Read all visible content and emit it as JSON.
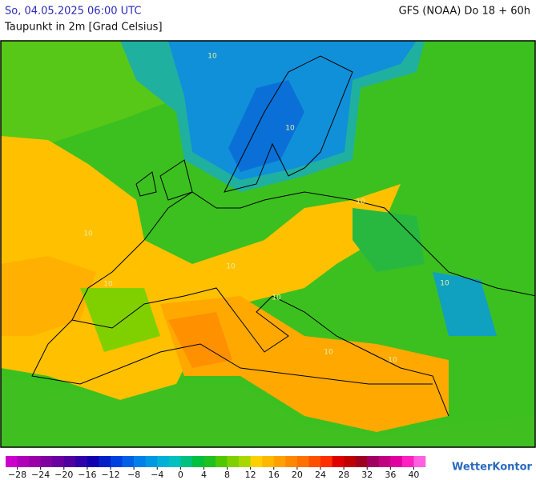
{
  "header": {
    "date": "So, 04.05.2025 06:00 UTC",
    "model": "GFS (NOAA) Do 18 + 60h",
    "subtitle": "Taupunkt in 2m [Grad Celsius]"
  },
  "map": {
    "contour_labels": [
      "10",
      "10",
      "10",
      "10",
      "10",
      "10",
      "10",
      "10",
      "10",
      "10"
    ]
  },
  "colorbar": {
    "range": [
      -30,
      42
    ],
    "colors": [
      "#cc00cc",
      "#b000b8",
      "#9a00a8",
      "#8000a0",
      "#6a00a0",
      "#5000a0",
      "#3000a8",
      "#1000b0",
      "#0020c8",
      "#0040e0",
      "#0060e8",
      "#0080e8",
      "#0098e0",
      "#00b0d8",
      "#00c0c0",
      "#00c080",
      "#00c040",
      "#20c020",
      "#50c800",
      "#80d000",
      "#a8d800",
      "#ffd000",
      "#ffb800",
      "#ffa000",
      "#ff8800",
      "#ff7000",
      "#ff5000",
      "#ff3000",
      "#e00000",
      "#c00000",
      "#a00020",
      "#a00060",
      "#c00080",
      "#e000a0",
      "#ff20c0",
      "#ff60e0"
    ],
    "ticks": [
      {
        "value": -28,
        "label": "−28"
      },
      {
        "value": -24,
        "label": "−24"
      },
      {
        "value": -20,
        "label": "−20"
      },
      {
        "value": -16,
        "label": "−16"
      },
      {
        "value": -12,
        "label": "−12"
      },
      {
        "value": -8,
        "label": "−8"
      },
      {
        "value": -4,
        "label": "−4"
      },
      0,
      4,
      8,
      12,
      16,
      20,
      24,
      28,
      32,
      36,
      40
    ]
  },
  "brand": "WetterKontor"
}
